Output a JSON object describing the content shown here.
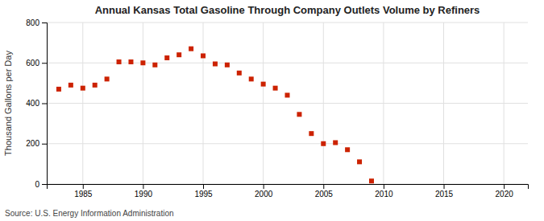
{
  "chart_data": {
    "type": "scatter",
    "title": "Annual Kansas Total Gasoline Through Company Outlets Volume by Refiners",
    "ylabel": "Thousand Gallons per Day",
    "annotations": [
      "Source: U.S. Energy Information Administration"
    ],
    "x": [
      1983,
      1984,
      1985,
      1986,
      1987,
      1988,
      1989,
      1990,
      1991,
      1992,
      1993,
      1994,
      1995,
      1996,
      1997,
      1998,
      1999,
      2000,
      2001,
      2002,
      2003,
      2004,
      2005,
      2006,
      2007,
      2008,
      2009
    ],
    "values": [
      470,
      490,
      475,
      490,
      520,
      605,
      605,
      600,
      590,
      625,
      640,
      670,
      635,
      595,
      590,
      550,
      520,
      495,
      475,
      440,
      345,
      250,
      200,
      205,
      170,
      110,
      15
    ],
    "color": "#cc2200",
    "marker": "square",
    "xlim": [
      1982,
      2022
    ],
    "xticks": [
      1985,
      1990,
      1995,
      2000,
      2005,
      2010,
      2015,
      2020
    ],
    "ylim": [
      0,
      800
    ],
    "yticks": [
      0,
      200,
      400,
      600,
      800
    ],
    "grid": true
  }
}
